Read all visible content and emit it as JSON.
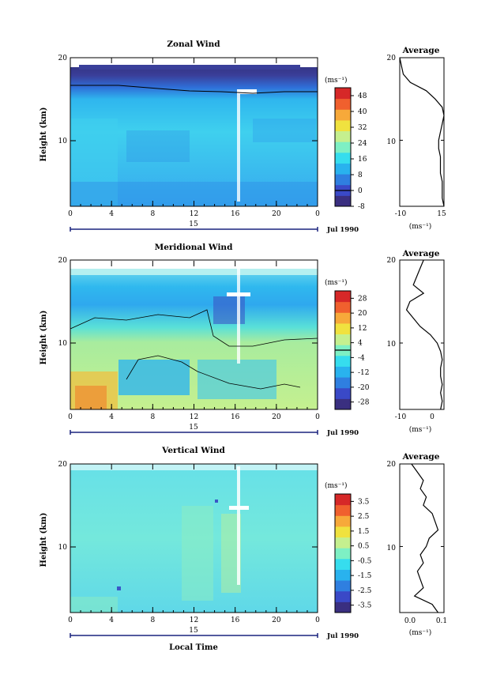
{
  "common": {
    "x_ticks": [
      "0",
      "4",
      "8",
      "12",
      "16",
      "20",
      "0"
    ],
    "y_ticks": [
      "10",
      "20"
    ],
    "ylabel": "Height (km)",
    "unit_label": "(ms⁻¹)",
    "day_label": "15",
    "date_label": "Jul 1990",
    "xlabel": "Local Time",
    "avg_title": "Average",
    "colormap": [
      "#3a2f80",
      "#3a49c7",
      "#2f7fe0",
      "#29b2ee",
      "#36ddee",
      "#7ef0c4",
      "#c5f08f",
      "#f0e23f",
      "#f7a93a",
      "#f0602e",
      "#d62828"
    ]
  },
  "chart_data": [
    {
      "type": "heatmap",
      "title": "Zonal Wind",
      "xlabel": "Local Time",
      "ylabel": "Height (km)",
      "xlim": [
        0,
        24
      ],
      "ylim": [
        2,
        20
      ],
      "colorbar": {
        "labels": [
          "48",
          "40",
          "32",
          "24",
          "16",
          "8",
          "0",
          "-8"
        ],
        "range": [
          -8,
          52
        ],
        "contour_level": 0
      },
      "average": {
        "xlim": [
          -10,
          15
        ],
        "x_ticks": [
          "-10",
          "15"
        ],
        "profile_km": [
          2,
          3,
          4,
          5,
          6,
          7,
          8,
          9,
          10,
          11,
          12,
          13,
          14,
          15,
          16,
          17,
          18,
          19,
          20
        ],
        "profile_values": [
          15,
          14,
          14,
          14,
          13,
          13,
          13,
          12,
          12,
          13,
          14,
          15,
          14,
          10,
          5,
          -4,
          -8,
          -9,
          -10
        ]
      }
    },
    {
      "type": "heatmap",
      "title": "Meridional Wind",
      "xlabel": "Local Time",
      "ylabel": "Height (km)",
      "xlim": [
        0,
        24
      ],
      "ylim": [
        2,
        20
      ],
      "colorbar": {
        "labels": [
          "28",
          "20",
          "12",
          "4",
          "-4",
          "-12",
          "-20",
          "-28"
        ],
        "range": [
          -32,
          32
        ],
        "contour_level": 0
      },
      "average": {
        "xlim": [
          -10,
          3
        ],
        "x_ticks": [
          "-10",
          "0"
        ],
        "profile_km": [
          2,
          3,
          4,
          5,
          6,
          7,
          8,
          9,
          10,
          11,
          12,
          13,
          14,
          15,
          16,
          17,
          18,
          19,
          20
        ],
        "profile_values": [
          2,
          2.5,
          2,
          2.5,
          2,
          2,
          2.5,
          2,
          1,
          -1,
          -4,
          -6,
          -8,
          -7,
          -3,
          -6,
          -5,
          -4,
          -3
        ]
      }
    },
    {
      "type": "heatmap",
      "title": "Vertical Wind",
      "xlabel": "Local Time",
      "ylabel": "Height (km)",
      "xlim": [
        0,
        24
      ],
      "ylim": [
        2,
        20
      ],
      "colorbar": {
        "labels": [
          "3.5",
          "2.5",
          "1.5",
          "0.5",
          "-0.5",
          "-1.5",
          "-2.5",
          "-3.5"
        ],
        "range": [
          -4,
          4
        ]
      },
      "average": {
        "xlim": [
          -0.05,
          0.1
        ],
        "x_ticks": [
          "0.0",
          "0.1"
        ],
        "profile_km": [
          2,
          3,
          4,
          5,
          6,
          7,
          8,
          9,
          10,
          11,
          12,
          13,
          14,
          15,
          16,
          17,
          18,
          19,
          20
        ],
        "profile_values": [
          0.08,
          0.06,
          0.0,
          0.03,
          0.02,
          0.01,
          0.03,
          0.02,
          0.04,
          0.05,
          0.08,
          0.07,
          0.06,
          0.03,
          0.04,
          0.02,
          0.03,
          0.01,
          -0.01
        ]
      }
    }
  ]
}
